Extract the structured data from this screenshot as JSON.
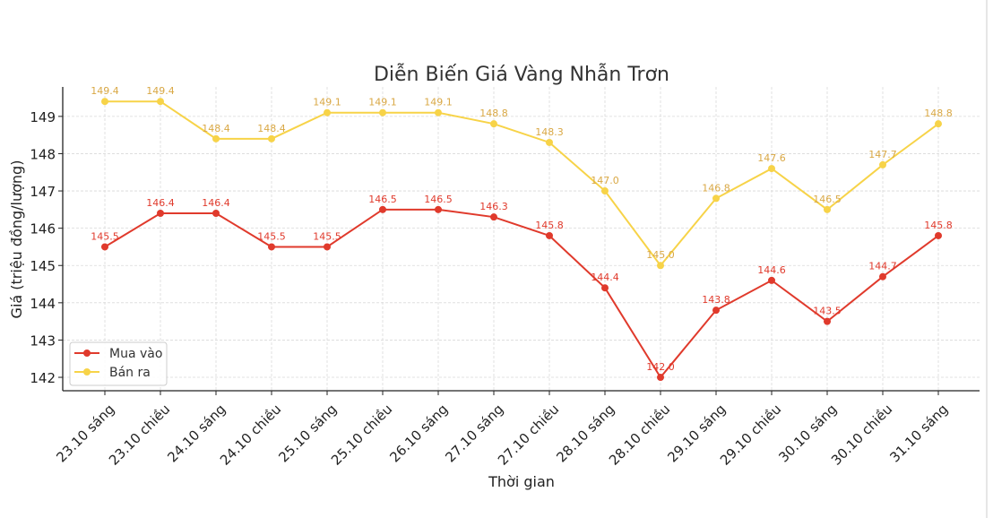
{
  "chart_data": {
    "type": "line",
    "title": "Diễn Biến Giá Vàng Nhẫn Trơn",
    "xlabel": "Thời gian",
    "ylabel": "Giá (triệu đồng/lượng)",
    "categories": [
      "23.10 sáng",
      "23.10 chiều",
      "24.10 sáng",
      "24.10 chiều",
      "25.10 sáng",
      "25.10 chiều",
      "26.10 sáng",
      "27.10 sáng",
      "27.10 chiều",
      "28.10 sáng",
      "28.10 chiều",
      "29.10 sáng",
      "29.10 chiều",
      "30.10 sáng",
      "30.10 chiều",
      "31.10 sáng"
    ],
    "yticks": [
      142,
      143,
      144,
      145,
      146,
      147,
      148,
      149
    ],
    "ylim": [
      141.64,
      149.79
    ],
    "grid": true,
    "legend_position": "lower-left",
    "series": [
      {
        "name": "Mua vào",
        "color": "#e03a2c",
        "label_color": "#e03a2c",
        "values": [
          145.5,
          146.4,
          146.4,
          145.5,
          145.5,
          146.5,
          146.5,
          146.3,
          145.8,
          144.4,
          142.0,
          143.8,
          144.6,
          143.5,
          144.7,
          145.8
        ]
      },
      {
        "name": "Bán ra",
        "color": "#f7d348",
        "label_color": "#d9a845",
        "values": [
          149.4,
          149.4,
          148.4,
          148.4,
          149.1,
          149.1,
          149.1,
          148.8,
          148.3,
          147.0,
          145.0,
          146.8,
          147.6,
          146.5,
          147.7,
          148.8
        ]
      }
    ]
  }
}
